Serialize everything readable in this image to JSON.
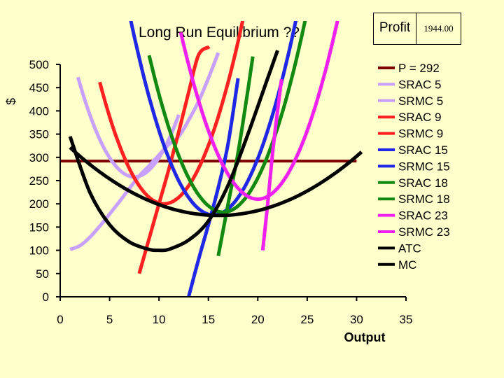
{
  "profit_table": {
    "label": "Profit",
    "value": "1944.00"
  },
  "chart_data": {
    "type": "line",
    "title": "Long Run Equilibrium ??",
    "xlabel": "Output",
    "ylabel": "$",
    "xlim": [
      0,
      35
    ],
    "ylim": [
      0,
      500
    ],
    "xticks": [
      0,
      5,
      10,
      15,
      20,
      25,
      30,
      35
    ],
    "yticks": [
      0,
      50,
      100,
      150,
      200,
      250,
      300,
      350,
      400,
      450,
      500
    ],
    "legend_position": "right",
    "series": [
      {
        "name": "P = 292",
        "color": "#800000",
        "kind": "hline",
        "y": 292,
        "x_range": [
          0,
          30
        ]
      },
      {
        "name": "SRAC 5",
        "color": "#c8a0ff",
        "kind": "srac",
        "min_x": 7.5,
        "min_y": 258,
        "k": 6.6,
        "x_range": [
          1.8,
          12.0
        ]
      },
      {
        "name": "SRMC 5",
        "color": "#c8a0ff",
        "kind": "srmc",
        "points": [
          [
            1,
            102
          ],
          [
            2,
            110
          ],
          [
            3,
            128
          ],
          [
            4,
            152
          ],
          [
            5,
            178
          ],
          [
            6,
            205
          ],
          [
            7,
            233
          ],
          [
            8,
            260
          ],
          [
            9,
            282
          ],
          [
            10,
            305
          ],
          [
            11,
            328
          ],
          [
            12,
            345
          ],
          [
            13,
            380
          ],
          [
            14,
            420
          ],
          [
            15,
            470
          ],
          [
            16,
            525
          ]
        ]
      },
      {
        "name": "SRAC 9",
        "color": "#ff2020",
        "kind": "srac",
        "min_x": 10.5,
        "min_y": 200,
        "k": 6.2,
        "x_range": [
          4.0,
          20.5
        ]
      },
      {
        "name": "SRMC 9",
        "color": "#ff2020",
        "kind": "srmc",
        "points": [
          [
            8,
            50
          ],
          [
            9,
            125
          ],
          [
            10,
            200
          ],
          [
            11,
            275
          ],
          [
            12,
            355
          ],
          [
            13,
            440
          ],
          [
            14,
            520
          ],
          [
            15.1,
            538
          ]
        ]
      },
      {
        "name": "SRAC 15",
        "color": "#1e28e6",
        "kind": "srac",
        "min_x": 15.5,
        "min_y": 176,
        "k": 6.0,
        "x_range": [
          7.0,
          27.5
        ]
      },
      {
        "name": "SRMC 15",
        "color": "#1e28e6",
        "kind": "srmc",
        "points": [
          [
            13,
            0
          ],
          [
            14,
            80
          ],
          [
            15,
            155
          ],
          [
            16,
            235
          ],
          [
            17,
            330
          ],
          [
            18,
            470
          ]
        ]
      },
      {
        "name": "SRAC 18",
        "color": "#128a12",
        "kind": "srac",
        "min_x": 16.5,
        "min_y": 182,
        "k": 6.0,
        "x_range": [
          9.0,
          30.7
        ]
      },
      {
        "name": "SRMC 18",
        "color": "#128a12",
        "kind": "srmc",
        "points": [
          [
            16,
            88
          ],
          [
            17,
            200
          ],
          [
            18,
            310
          ],
          [
            19,
            445
          ],
          [
            19.5,
            517
          ]
        ]
      },
      {
        "name": "SRAC 23",
        "color": "#f020f0",
        "kind": "srac",
        "min_x": 20.0,
        "min_y": 210,
        "k": 5.9,
        "x_range": [
          12.2,
          30.0
        ]
      },
      {
        "name": "SRMC 23",
        "color": "#f020f0",
        "kind": "srmc",
        "points": [
          [
            20.5,
            100
          ],
          [
            21,
            200
          ],
          [
            21.5,
            310
          ],
          [
            22,
            400
          ],
          [
            22.4,
            468
          ]
        ]
      },
      {
        "name": "ATC",
        "color": "#000000",
        "kind": "srac",
        "min_x": 16.0,
        "min_y": 175,
        "k": 0.65,
        "x_range": [
          1.0,
          30.5
        ]
      },
      {
        "name": "MC",
        "color": "#000000",
        "kind": "srmc",
        "points": [
          [
            1,
            345
          ],
          [
            3,
            225
          ],
          [
            5,
            155
          ],
          [
            7,
            118
          ],
          [
            9,
            102
          ],
          [
            10,
            100
          ],
          [
            11,
            102
          ],
          [
            13,
            122
          ],
          [
            15,
            163
          ],
          [
            17,
            240
          ],
          [
            19,
            350
          ],
          [
            21,
            470
          ],
          [
            22,
            530
          ]
        ]
      }
    ]
  }
}
